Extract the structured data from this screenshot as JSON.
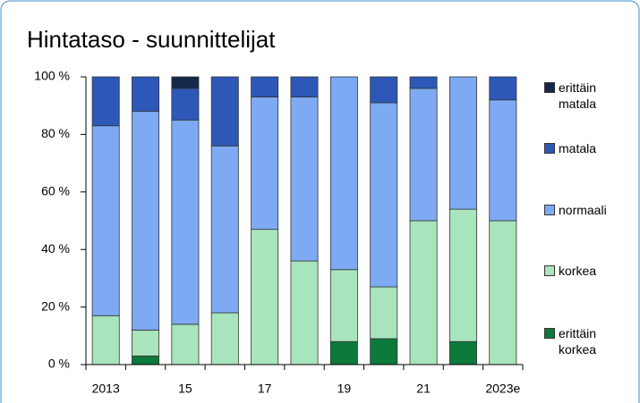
{
  "chart_data": {
    "type": "stacked_bar",
    "title": "Hintataso - suunnittelijat",
    "categories": [
      "2013",
      null,
      "15",
      null,
      "17",
      null,
      "19",
      null,
      "21",
      null,
      "2023e"
    ],
    "series": [
      {
        "name": "erittäin korkea",
        "color": "#0b7a3b",
        "values": [
          0,
          3,
          0,
          0,
          0,
          0,
          8,
          9,
          0,
          8,
          0
        ]
      },
      {
        "name": "korkea",
        "color": "#a8e4bc",
        "values": [
          17,
          9,
          14,
          18,
          47,
          36,
          25,
          18,
          50,
          46,
          50
        ]
      },
      {
        "name": "normaali",
        "color": "#7eaaf4",
        "values": [
          66,
          76,
          71,
          58,
          46,
          57,
          67,
          64,
          46,
          46,
          42
        ]
      },
      {
        "name": "matala",
        "color": "#2e58b8",
        "values": [
          17,
          12,
          11,
          24,
          7,
          7,
          0,
          9,
          4,
          0,
          8
        ]
      },
      {
        "name": "erittäin matala",
        "color": "#13284a",
        "values": [
          0,
          0,
          4,
          0,
          0,
          0,
          0,
          0,
          0,
          0,
          0
        ]
      }
    ],
    "ylim": [
      0,
      100
    ],
    "yticks": [
      {
        "value": 0,
        "label": "0 %"
      },
      {
        "value": 20,
        "label": "20 %"
      },
      {
        "value": 40,
        "label": "40 %"
      },
      {
        "value": 60,
        "label": "60 %"
      },
      {
        "value": 80,
        "label": "80 %"
      },
      {
        "value": 100,
        "label": "100 %"
      }
    ],
    "grid": false
  }
}
